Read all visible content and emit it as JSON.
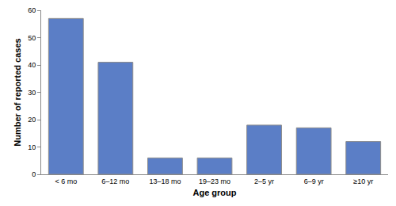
{
  "chart_data": {
    "type": "bar",
    "x_label": "Age group",
    "y_label": "Number of reported cases",
    "categories": [
      "< 6 mo",
      "6–12 mo",
      "13–18 mo",
      "19–23 mo",
      "2–5 yr",
      "6–9 yr",
      "≥10 yr"
    ],
    "values": [
      57,
      41,
      6,
      6,
      18,
      17,
      12
    ],
    "color": "#5b7ec6",
    "ylim": [
      0,
      60
    ],
    "yticks": [
      0,
      10,
      20,
      30,
      40,
      50,
      60
    ],
    "grid": false
  }
}
